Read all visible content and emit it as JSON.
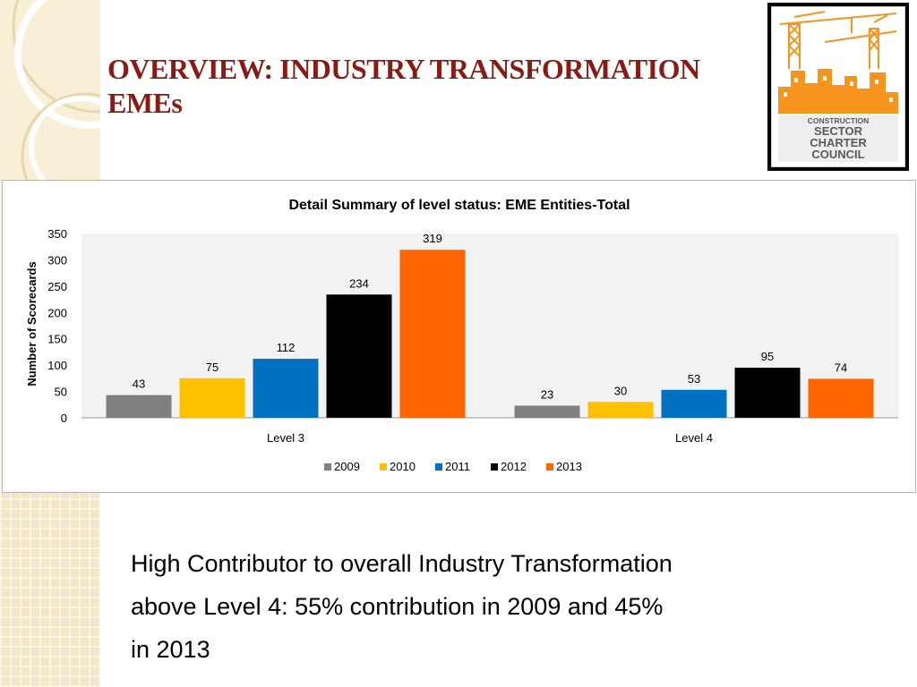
{
  "slide": {
    "title_line1": "OVERVIEW: INDUSTRY TRANSFORMATION",
    "title_line2": "EMEs",
    "body_lines": [
      "High Contributor to overall Industry Transformation",
      "above Level 4:  55% contribution in 2009 and 45%",
      "in 2013"
    ]
  },
  "logo": {
    "lines": [
      "CONSTRUCTION",
      "SECTOR",
      "CHARTER",
      "COUNCIL"
    ],
    "color": "#f7941d"
  },
  "chart_data": {
    "type": "bar",
    "title": "Detail Summary  of level status: EME Entities-Total",
    "xlabel": "",
    "ylabel": "Number of Scorecards",
    "ylim": [
      0,
      350
    ],
    "yticks": [
      0,
      50,
      100,
      150,
      200,
      250,
      300,
      350
    ],
    "categories": [
      "Level 3",
      "Level 4"
    ],
    "series": [
      {
        "name": "2009",
        "values": [
          43,
          23
        ],
        "color": "#808080"
      },
      {
        "name": "2010",
        "values": [
          75,
          30
        ],
        "color": "#ffc000"
      },
      {
        "name": "2011",
        "values": [
          112,
          53
        ],
        "color": "#0070c0"
      },
      {
        "name": "2012",
        "values": [
          234,
          95
        ],
        "color": "#000000"
      },
      {
        "name": "2013",
        "values": [
          319,
          74
        ],
        "color": "#ff6600"
      }
    ],
    "legend": "bottom",
    "plot_background": "#f2f2f2"
  }
}
